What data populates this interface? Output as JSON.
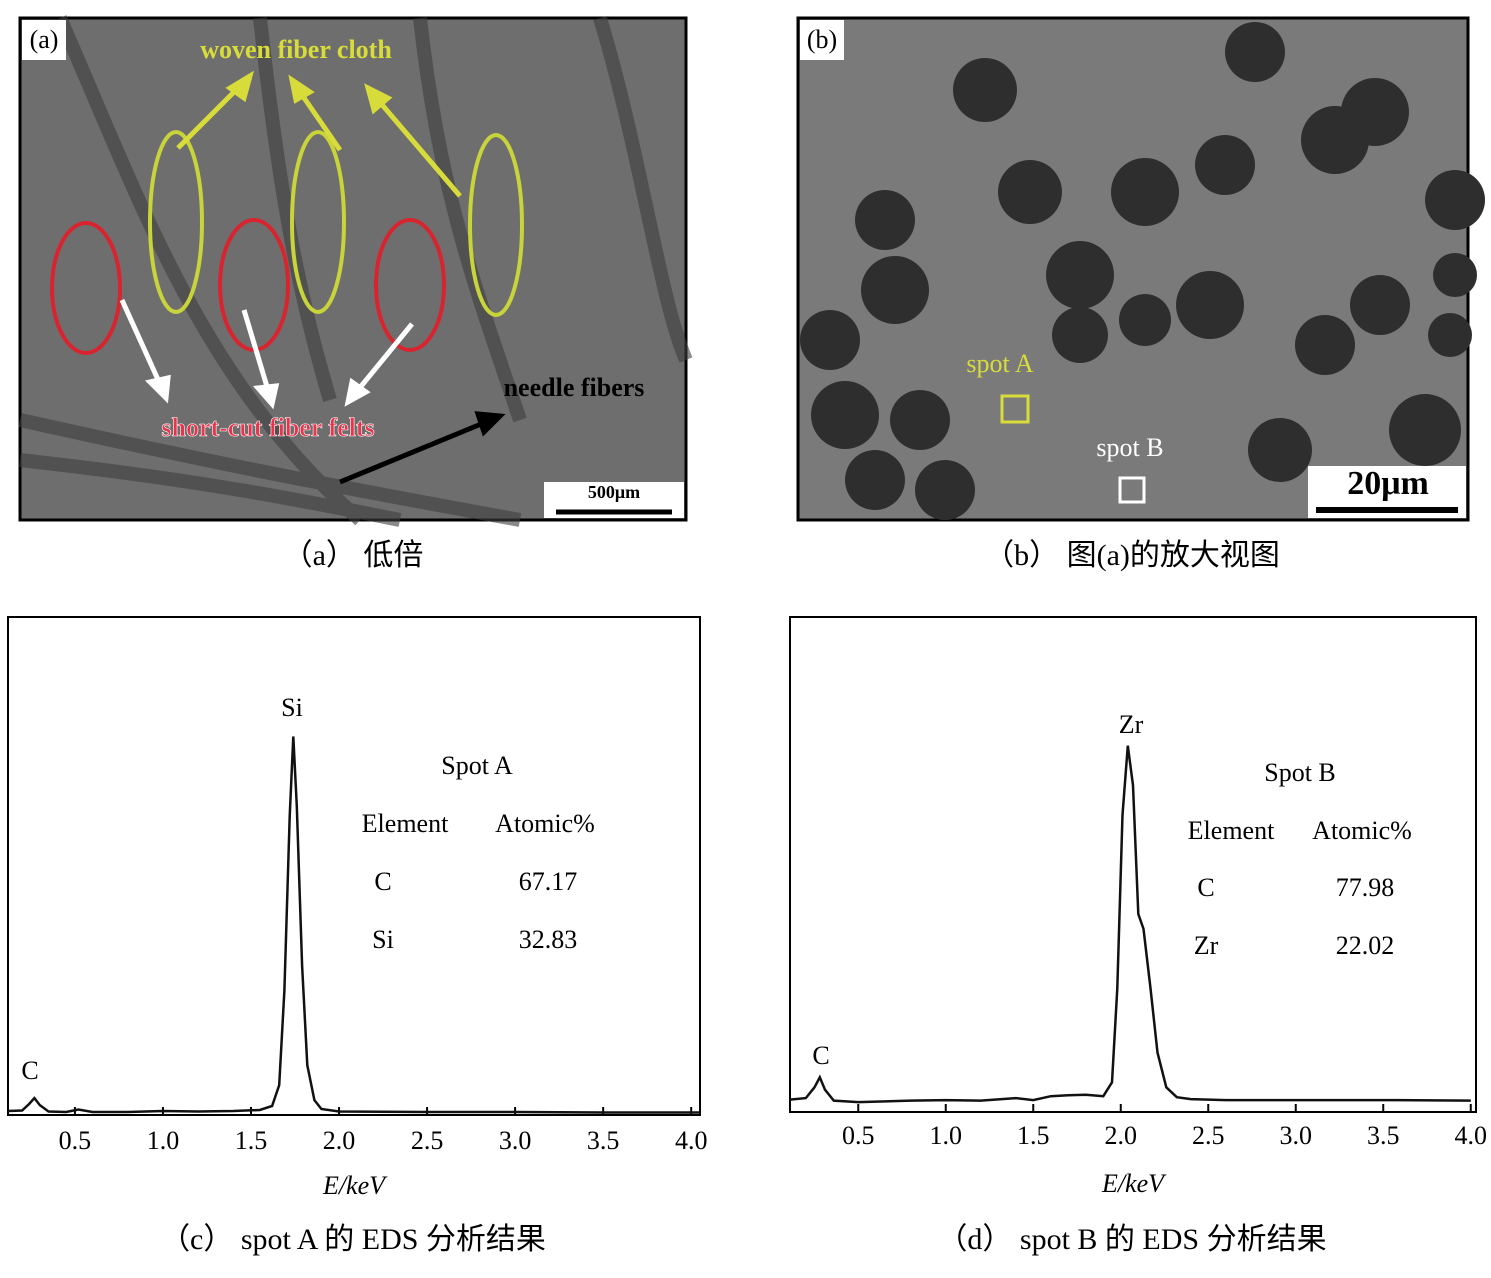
{
  "panels": [
    {
      "label": "(a)",
      "caption": "（a）  低倍",
      "woven": "woven fiber cloth",
      "felts": "short-cut fiber felts",
      "needle": "needle fibers",
      "scale_bar": "500μm"
    },
    {
      "label": "(b)",
      "caption": "（b）  图(a)的放大视图",
      "spot_a": "spot A",
      "spot_b": "spot B",
      "scale_bar": "20μm"
    }
  ],
  "chart_data": [
    {
      "type": "line",
      "caption": "（c）  spot A 的 EDS 分析结果",
      "xlabel": "E/keV",
      "color": "#111111",
      "x": [
        0.12,
        0.2,
        0.24,
        0.27,
        0.3,
        0.35,
        0.45,
        0.52,
        0.6,
        0.8,
        1.0,
        1.2,
        1.4,
        1.55,
        1.62,
        1.66,
        1.69,
        1.72,
        1.74,
        1.76,
        1.79,
        1.82,
        1.86,
        1.9,
        2.0,
        2.5,
        3.0,
        3.5,
        4.05
      ],
      "values": [
        0.8,
        0.9,
        2.2,
        3.4,
        2.0,
        0.7,
        0.6,
        1.1,
        0.6,
        0.6,
        0.8,
        0.7,
        0.8,
        1.0,
        1.8,
        6,
        25,
        60,
        76,
        62,
        30,
        10,
        3,
        1.2,
        0.7,
        0.6,
        0.6,
        0.5,
        0.5
      ],
      "xlim": [
        0.12,
        4.05
      ],
      "ylim": [
        0,
        100
      ],
      "xticks": [
        0.5,
        {
          "value": 1,
          "label": "1.0"
        },
        1.5,
        {
          "value": 2,
          "label": "2.0"
        },
        2.5,
        {
          "value": 3,
          "label": "3.0"
        },
        3.5,
        {
          "value": 4,
          "label": "4.0"
        }
      ],
      "peak_labels": [
        "Si",
        "C"
      ],
      "table": {
        "title": "Spot A",
        "header": [
          "Element",
          "Atomic%"
        ],
        "rows": [
          [
            "C",
            67.17
          ],
          [
            "Si",
            32.83
          ]
        ]
      }
    },
    {
      "type": "line",
      "caption": "（d）  spot B 的 EDS 分析结果",
      "xlabel": "E/keV",
      "color": "#111111",
      "x": [
        0.11,
        0.2,
        0.25,
        0.28,
        0.31,
        0.36,
        0.5,
        0.8,
        1.0,
        1.2,
        1.4,
        1.5,
        1.6,
        1.7,
        1.8,
        1.9,
        1.95,
        1.98,
        2.01,
        2.04,
        2.07,
        2.1,
        2.13,
        2.17,
        2.21,
        2.26,
        2.32,
        2.4,
        2.6,
        3.0,
        3.5,
        4.0
      ],
      "values": [
        2.5,
        2.8,
        5,
        7,
        4.5,
        2.3,
        2.0,
        2.3,
        2.4,
        2.3,
        2.8,
        2.4,
        3.2,
        3.4,
        3.5,
        3.2,
        6,
        25,
        60,
        74,
        66,
        40,
        37,
        25,
        12,
        5,
        3,
        2.6,
        2.4,
        2.4,
        2.4,
        2.3
      ],
      "xlim": [
        0.11,
        4.03
      ],
      "ylim": [
        0,
        100
      ],
      "xticks": [
        0.5,
        {
          "value": 1,
          "label": "1.0"
        },
        1.5,
        {
          "value": 2,
          "label": "2.0"
        },
        2.5,
        {
          "value": 3,
          "label": "3.0"
        },
        3.5,
        {
          "value": 4,
          "label": "4.0"
        }
      ],
      "peak_labels": [
        "Zr",
        "C"
      ],
      "table": {
        "title": "Spot B",
        "header": [
          "Element",
          "Atomic%"
        ],
        "rows": [
          [
            "C",
            77.98
          ],
          [
            "Zr",
            22.02
          ]
        ]
      }
    }
  ]
}
